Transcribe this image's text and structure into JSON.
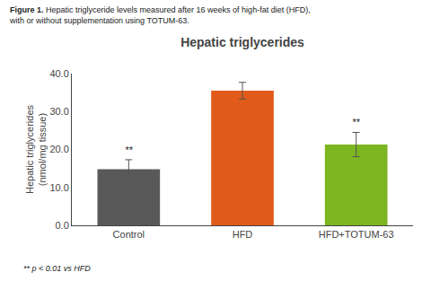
{
  "chart_data": {
    "type": "bar",
    "title": "Hepatic triglycerides",
    "subtitle": {
      "bold": "Figure 1.",
      "text": " Hepatic triglyceride levels measured after 16 weeks of high-fat diet (HFD),\nwith or without supplementation using TOTUM-63."
    },
    "categories": [
      "Control",
      "HFD",
      "HFD+TOTUM-63"
    ],
    "values": [
      14.8,
      35.5,
      21.3
    ],
    "errors": [
      2.5,
      2.2,
      3.2
    ],
    "colors": [
      "#595959",
      "#E05A1A",
      "#7DB520"
    ],
    "ylabel": "Hepatic triglycerides\n(nmol/mg tissue)",
    "ylim": [
      0,
      40.0
    ],
    "yticks": [
      {
        "value": 0.0,
        "label": "0.0"
      },
      {
        "value": 10.0,
        "label": "10.0"
      },
      {
        "value": 20.0,
        "label": "20.0"
      },
      {
        "value": 30.0,
        "label": "30.0"
      },
      {
        "value": 40.0,
        "label": "40.0"
      }
    ],
    "grid": false,
    "annotations": [
      {
        "text": "**",
        "category": "Control"
      },
      {
        "text": "**",
        "category": "HFD+TOTUM-63"
      },
      {
        "text": "** p < 0.01 vs HFD"
      }
    ]
  }
}
